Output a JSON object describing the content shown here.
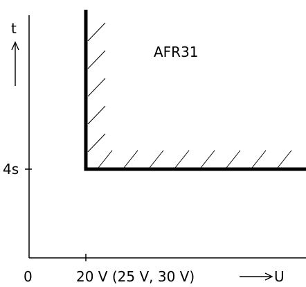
{
  "diagram": {
    "name": "AFR31",
    "axes": {
      "y": {
        "symbol": "t",
        "arrow": "↑"
      },
      "x": {
        "symbol": "U",
        "arrow": "⟶"
      }
    },
    "ticks": {
      "y": [
        {
          "label": "4s"
        }
      ],
      "x": [
        {
          "label": "0"
        },
        {
          "label": "20 V (25 V, 30 V)"
        }
      ]
    }
  }
}
